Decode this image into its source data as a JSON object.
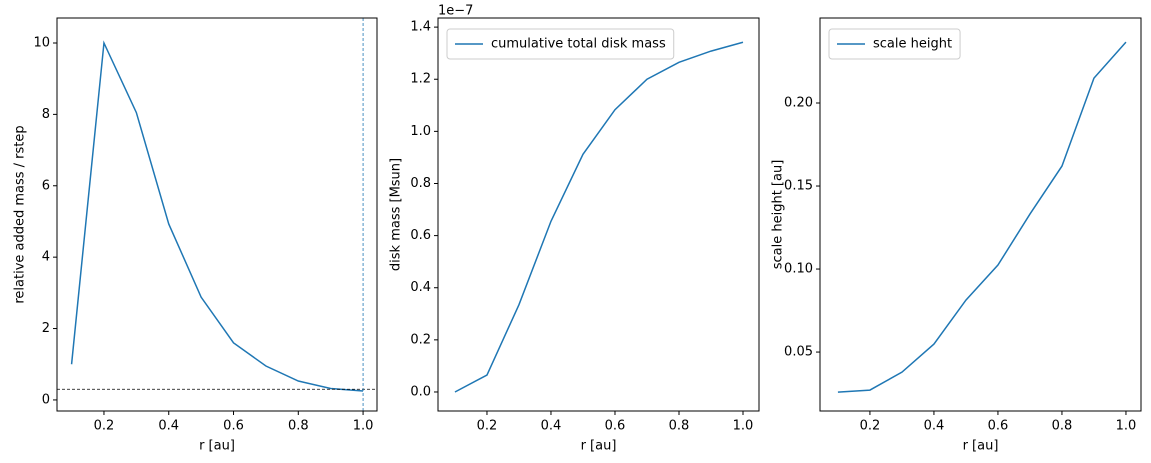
{
  "chart_data": [
    {
      "type": "line",
      "xlabel": "r [au]",
      "ylabel": "relative added mass / rstep",
      "x": [
        0.1,
        0.2,
        0.3,
        0.4,
        0.5,
        0.6,
        0.7,
        0.8,
        0.9,
        1.0
      ],
      "series": [
        {
          "color": "#1f77b4",
          "values": [
            1.0,
            10.0,
            8.05,
            4.93,
            2.88,
            1.6,
            0.95,
            0.53,
            0.32,
            0.25
          ]
        }
      ],
      "xlim": [
        0.055,
        1.043
      ],
      "ylim": [
        -0.31,
        10.7
      ],
      "xticks": [
        0.2,
        0.4,
        0.6,
        0.8,
        {
          "value": 1.0,
          "label": "1.0"
        }
      ],
      "yticks": [
        0,
        2,
        4,
        6,
        8,
        10
      ],
      "hline": {
        "value": 0.3,
        "color": "#000000"
      },
      "vline": {
        "value": 1.0,
        "color": "#1f77b4"
      }
    },
    {
      "type": "line",
      "xlabel": "r [au]",
      "ylabel": "disk mass [Msun]",
      "offset_text": "1e−7",
      "x": [
        0.1,
        0.2,
        0.3,
        0.4,
        0.5,
        0.6,
        0.7,
        0.8,
        0.9,
        1.0
      ],
      "series": [
        {
          "name": "cumulative total disk mass",
          "color": "#1f77b4",
          "values": [
            0.0,
            0.065,
            0.335,
            0.655,
            0.912,
            1.083,
            1.2,
            1.265,
            1.308,
            1.342
          ]
        }
      ],
      "xlim": [
        0.047,
        1.05
      ],
      "ylim": [
        -0.073,
        1.435
      ],
      "xticks": [
        0.2,
        0.4,
        0.6,
        0.8,
        {
          "value": 1.0,
          "label": "1.0"
        }
      ],
      "yticks": [
        {
          "value": 0.0,
          "label": "0.0"
        },
        0.2,
        0.4,
        0.6,
        0.8,
        {
          "value": 1.0,
          "label": "1.0"
        },
        1.2,
        1.4
      ],
      "legend": "upper left"
    },
    {
      "type": "line",
      "xlabel": "r [au]",
      "ylabel": "scale height [au]",
      "x": [
        0.1,
        0.2,
        0.3,
        0.4,
        0.5,
        0.6,
        0.7,
        0.8,
        0.9,
        1.0
      ],
      "series": [
        {
          "name": "scale height",
          "color": "#1f77b4",
          "values": [
            0.0259,
            0.0271,
            0.0379,
            0.0548,
            0.0813,
            0.1024,
            0.1331,
            0.162,
            0.215,
            0.2367
          ]
        }
      ],
      "xlim": [
        0.044,
        1.047
      ],
      "ylim": [
        0.0145,
        0.2512
      ],
      "xticks": [
        0.2,
        0.4,
        0.6,
        0.8,
        {
          "value": 1.0,
          "label": "1.0"
        }
      ],
      "yticks": [
        0.05,
        {
          "value": 0.1,
          "label": "0.10"
        },
        0.15,
        {
          "value": 0.2,
          "label": "0.20"
        }
      ],
      "legend": "upper left"
    }
  ]
}
